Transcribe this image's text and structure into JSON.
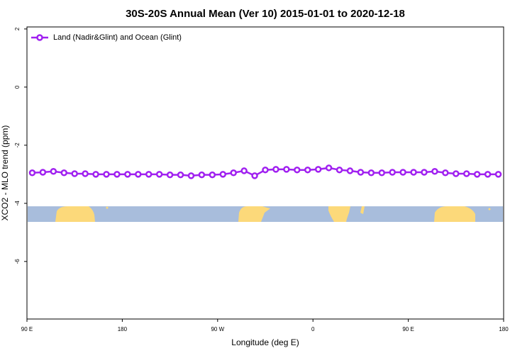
{
  "chart_data": {
    "type": "line",
    "title": "30S-20S Annual Mean (Ver 10)   2015-01-01 to 2020-12-18",
    "x_label": "Longitude (deg E)",
    "y_label": "XCO2 - MLO trend (ppm)",
    "x": [
      95,
      105,
      115,
      125,
      135,
      145,
      155,
      165,
      175,
      185,
      195,
      205,
      215,
      225,
      235,
      245,
      255,
      265,
      275,
      285,
      295,
      305,
      315,
      325,
      335,
      345,
      355,
      365,
      375,
      385,
      395,
      405,
      415,
      425,
      435,
      445,
      455,
      465,
      475,
      485,
      495,
      505,
      515,
      525,
      535
    ],
    "series": [
      {
        "name": "Land (Nadir&Glint) and Ocean (Glint)",
        "color": "#a020f0",
        "values": [
          -2.95,
          -2.93,
          -2.9,
          -2.95,
          -2.98,
          -2.98,
          -3.0,
          -3.0,
          -3.0,
          -3.0,
          -3.0,
          -3.0,
          -3.0,
          -3.02,
          -3.02,
          -3.05,
          -3.02,
          -3.02,
          -3.0,
          -2.95,
          -2.88,
          -3.05,
          -2.85,
          -2.83,
          -2.83,
          -2.85,
          -2.85,
          -2.83,
          -2.78,
          -2.85,
          -2.88,
          -2.93,
          -2.95,
          -2.95,
          -2.93,
          -2.93,
          -2.93,
          -2.93,
          -2.9,
          -2.95,
          -2.98,
          -2.98,
          -3.0,
          -3.0,
          -3.0
        ]
      }
    ],
    "xlim": [
      90,
      540
    ],
    "xticks": [
      {
        "value": 90,
        "label": "90 E"
      },
      180,
      {
        "value": 270,
        "label": "90 W"
      },
      {
        "value": 360,
        "label": "0"
      },
      {
        "value": 450,
        "label": "90 E"
      },
      {
        "value": 540,
        "label": "180"
      }
    ],
    "ylim": [
      -7.98,
      2.07
    ],
    "yticks": [
      2,
      0,
      -2,
      -4,
      -6
    ],
    "legend": "top-left"
  }
}
